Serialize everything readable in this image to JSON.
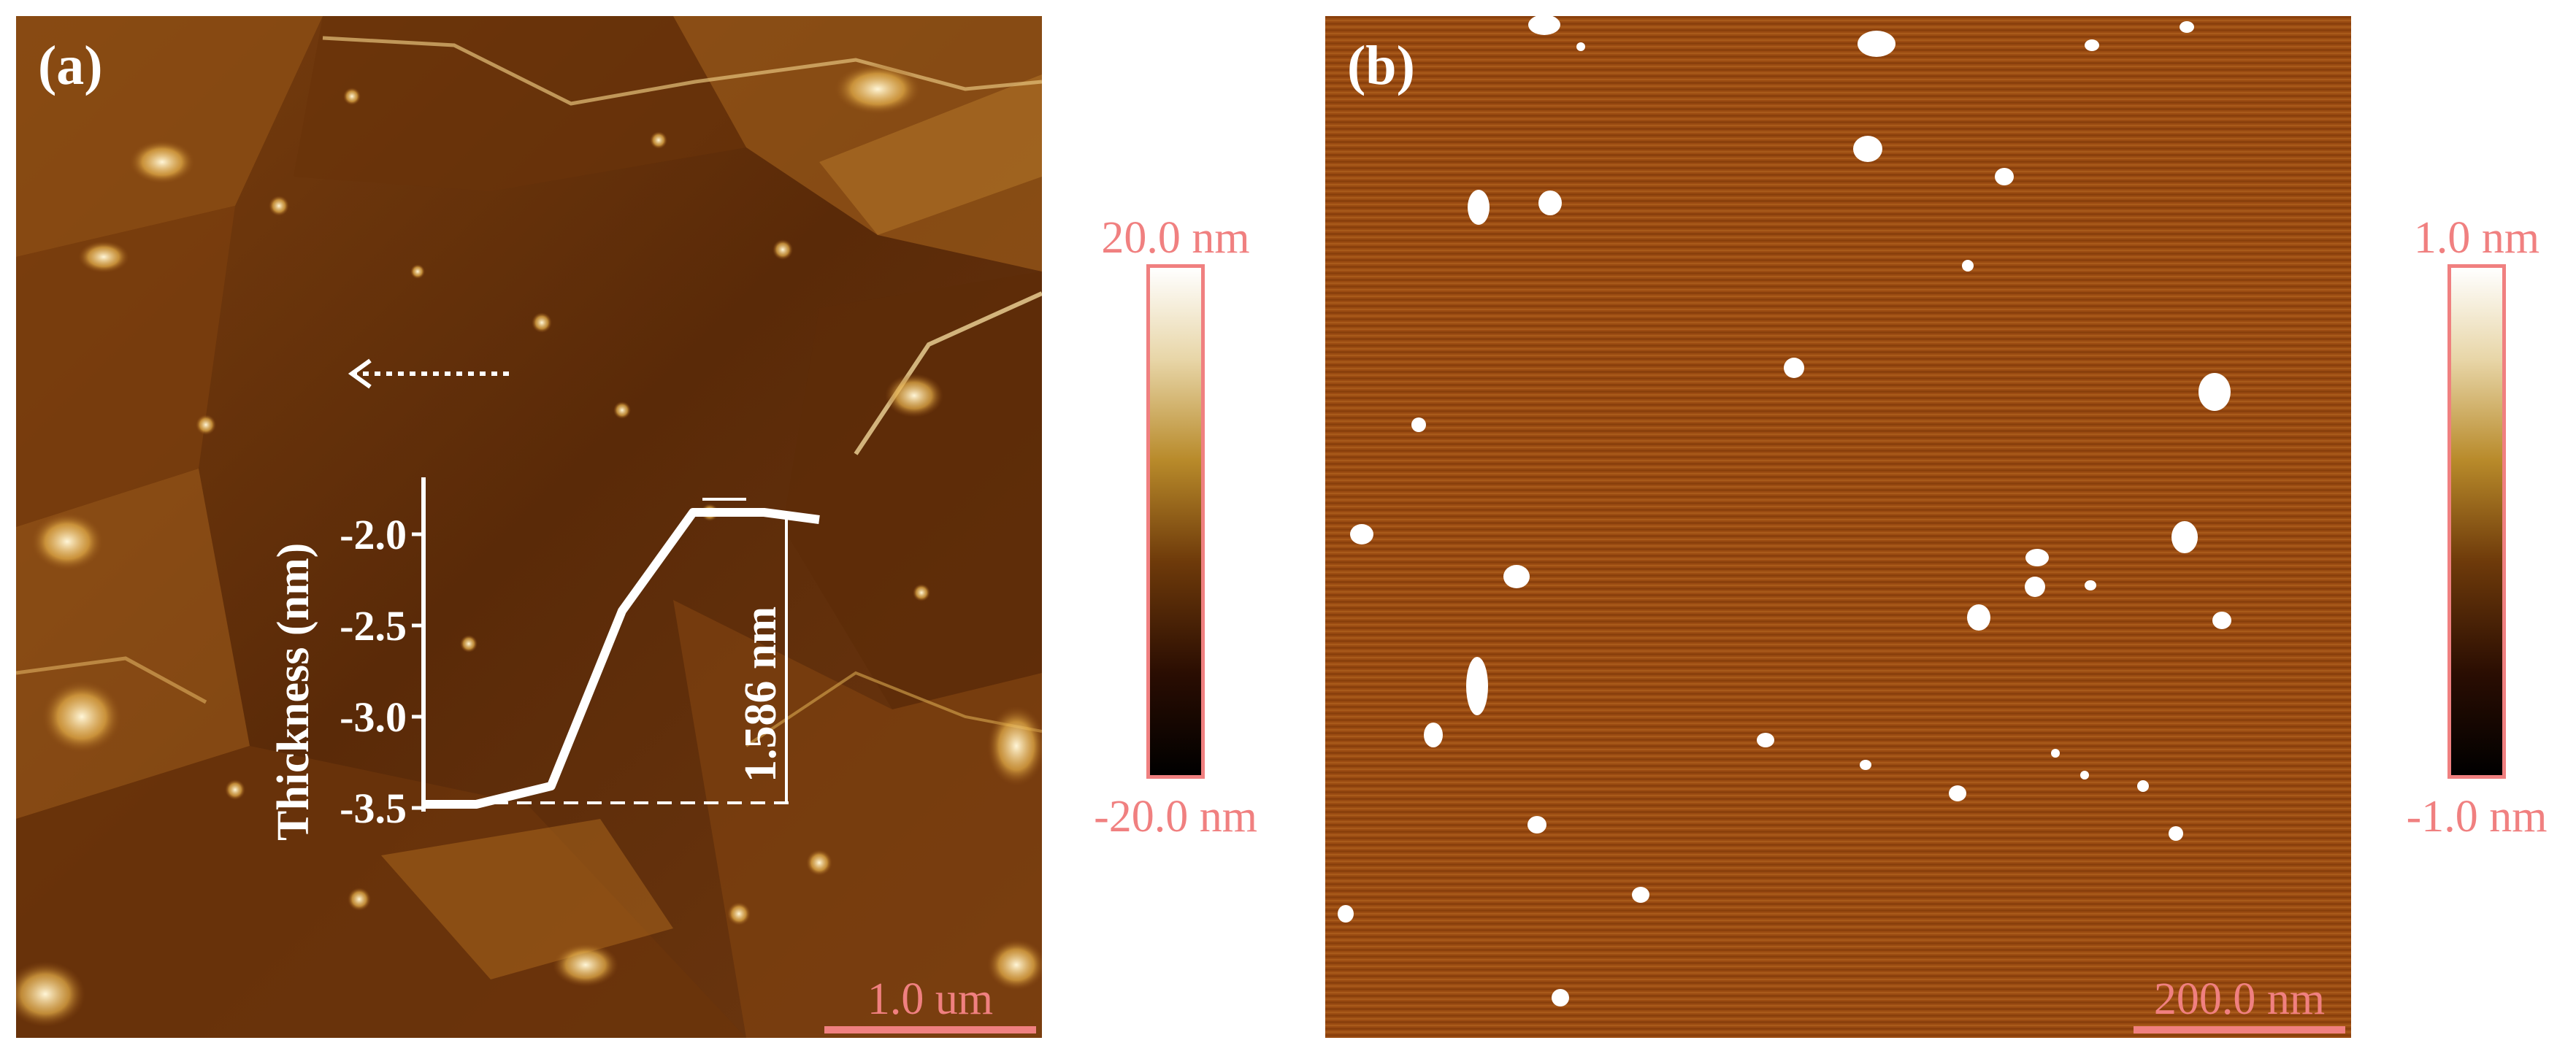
{
  "panel_a": {
    "label": "(a)",
    "scale_bar": "1.0 um",
    "colorbar": {
      "max_label": "20.0 nm",
      "min_label": "-20.0 nm"
    },
    "inset": {
      "ylabel": "Thickness (nm)",
      "yticks": [
        "-2.0",
        "-2.5",
        "-3.0",
        "-3.5"
      ],
      "step_label": "1.586 nm",
      "profile": [
        [
          0,
          -3.48
        ],
        [
          0.13,
          -3.48
        ],
        [
          0.32,
          -3.38
        ],
        [
          0.5,
          -2.42
        ],
        [
          0.68,
          -1.88
        ],
        [
          0.86,
          -1.88
        ],
        [
          1.0,
          -1.92
        ]
      ]
    }
  },
  "panel_b": {
    "label": "(b)",
    "scale_bar": "200.0 nm",
    "colorbar": {
      "max_label": "1.0 nm",
      "min_label": "-1.0 nm"
    }
  },
  "colors": {
    "annotation": "#f08080",
    "afm_dark": "#3b1805",
    "afm_mid": "#8a4a12",
    "afm_bright": "#ffffff"
  }
}
